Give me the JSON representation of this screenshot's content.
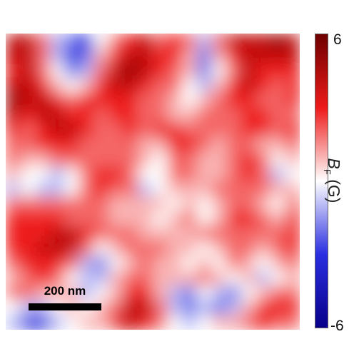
{
  "chart_data": {
    "type": "heatmap",
    "title": "",
    "xlabel": "",
    "ylabel": "",
    "grid": false,
    "colormap": [
      "#08008a",
      "#2a2ee0",
      "#ffffff",
      "#ee1a1a",
      "#6e0000"
    ],
    "colorbar": {
      "label_symbol": "B",
      "label_subscript": "F",
      "label_unit": "(G)",
      "min": -6,
      "max": 6,
      "ticks": [
        "6",
        "-6"
      ]
    },
    "scalebar": {
      "label": "200 nm"
    },
    "values": [
      [
        4,
        4,
        2,
        -1,
        -2,
        -3,
        0,
        2,
        3,
        4,
        2,
        3,
        2,
        -1,
        2,
        4,
        4,
        4,
        5,
        4
      ],
      [
        4,
        4,
        2,
        -1,
        -3,
        -2,
        1,
        3,
        4,
        4,
        3,
        3,
        1,
        -2,
        1,
        3,
        4,
        4,
        4,
        4
      ],
      [
        3,
        4,
        2,
        0,
        -2,
        -1,
        2,
        4,
        5,
        4,
        3,
        2,
        1,
        -2,
        0,
        2,
        4,
        3,
        3,
        3
      ],
      [
        4,
        4,
        3,
        1,
        0,
        1,
        3,
        4,
        4,
        3,
        2,
        2,
        0,
        -1,
        1,
        3,
        4,
        3,
        2,
        3
      ],
      [
        5,
        4,
        4,
        3,
        2,
        3,
        3,
        3,
        3,
        2,
        2,
        1,
        0,
        1,
        2,
        3,
        3,
        2,
        2,
        3
      ],
      [
        4,
        3,
        4,
        4,
        3,
        3,
        2,
        3,
        3,
        2,
        2,
        1,
        1,
        2,
        2,
        2,
        3,
        3,
        2,
        2
      ],
      [
        3,
        2,
        3,
        4,
        4,
        3,
        2,
        2,
        3,
        2,
        3,
        3,
        2,
        2,
        2,
        2,
        3,
        3,
        2,
        3
      ],
      [
        2,
        2,
        3,
        3,
        3,
        2,
        2,
        2,
        2,
        1,
        1,
        3,
        3,
        2,
        1,
        2,
        2,
        1,
        1,
        2
      ],
      [
        2,
        1,
        1,
        2,
        2,
        2,
        2,
        2,
        2,
        1,
        0,
        2,
        2,
        1,
        1,
        2,
        3,
        2,
        0,
        1
      ],
      [
        1,
        0,
        0,
        -1,
        0,
        2,
        3,
        3,
        2,
        0,
        0,
        2,
        2,
        1,
        1,
        2,
        3,
        2,
        -1,
        0
      ],
      [
        -1,
        0,
        -1,
        -1,
        0,
        2,
        3,
        2,
        2,
        -1,
        0,
        1,
        1,
        1,
        2,
        2,
        2,
        2,
        1,
        1
      ],
      [
        2,
        2,
        2,
        2,
        2,
        2,
        2,
        1,
        1,
        1,
        1,
        0,
        1,
        0,
        1,
        2,
        2,
        1,
        0,
        2
      ],
      [
        3,
        3,
        3,
        3,
        2,
        2,
        2,
        1,
        1,
        1,
        0,
        1,
        2,
        0,
        1,
        3,
        3,
        2,
        1,
        3
      ],
      [
        3,
        3,
        3,
        4,
        4,
        3,
        2,
        2,
        2,
        1,
        1,
        1,
        1,
        2,
        2,
        2,
        2,
        2,
        2,
        3
      ],
      [
        3,
        3,
        4,
        4,
        4,
        2,
        0,
        1,
        2,
        2,
        2,
        1,
        1,
        0,
        1,
        2,
        2,
        1,
        2,
        3
      ],
      [
        2,
        3,
        3,
        3,
        2,
        -1,
        -2,
        0,
        1,
        2,
        1,
        1,
        0,
        1,
        0,
        2,
        1,
        0,
        1,
        2
      ],
      [
        1,
        2,
        3,
        2,
        0,
        -1,
        -1,
        1,
        2,
        2,
        1,
        1,
        1,
        2,
        1,
        0,
        1,
        -1,
        0,
        1
      ],
      [
        2,
        2,
        1,
        1,
        1,
        -1,
        0,
        1,
        3,
        3,
        1,
        -1,
        -2,
        0,
        -1,
        -2,
        0,
        1,
        2,
        2
      ],
      [
        0,
        -1,
        -1,
        0,
        1,
        0,
        1,
        2,
        4,
        4,
        2,
        -1,
        -2,
        -1,
        -2,
        -1,
        1,
        3,
        3,
        3
      ],
      [
        -1,
        -3,
        -3,
        -1,
        0,
        1,
        1,
        3,
        4,
        3,
        2,
        0,
        -1,
        0,
        1,
        1,
        2,
        3,
        2,
        2
      ]
    ]
  }
}
